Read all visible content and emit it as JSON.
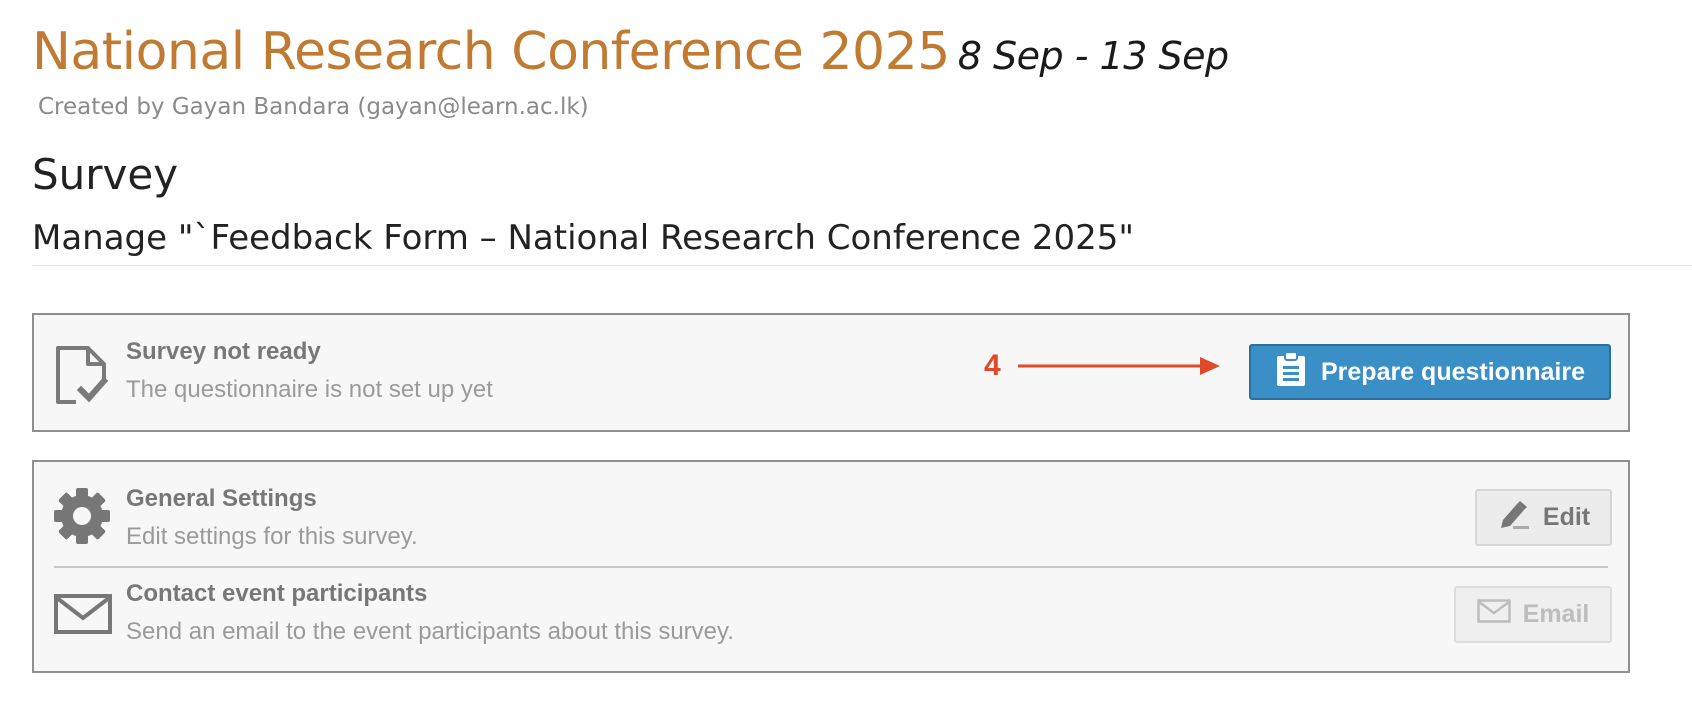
{
  "event": {
    "title": "National Research Conference 2025",
    "dates": "8 Sep - 13 Sep",
    "created_by": "Created by Gayan Bandara (gayan@learn.ac.lk)"
  },
  "section": {
    "title": "Survey",
    "manage_title": "Manage \"`Feedback Form – National Research Conference 2025\""
  },
  "status_panel": {
    "icon": "document-check-icon",
    "title": "Survey not ready",
    "description": "The questionnaire is not set up yet",
    "annotation_number": "4",
    "button_icon": "clipboard-icon",
    "button_label": "Prepare questionnaire"
  },
  "settings_panel": {
    "general": {
      "icon": "gear-icon",
      "title": "General Settings",
      "description": "Edit settings for this survey.",
      "button_icon": "pencil-icon",
      "button_label": "Edit"
    },
    "contact": {
      "icon": "envelope-icon",
      "title": "Contact event participants",
      "description": "Send an email to the event participants about this survey.",
      "button_icon": "envelope-icon",
      "button_label": "Email"
    }
  },
  "colors": {
    "event_title": "#c07a31",
    "primary_button": "#3a8fc7",
    "annotation": "#e04a2a"
  }
}
